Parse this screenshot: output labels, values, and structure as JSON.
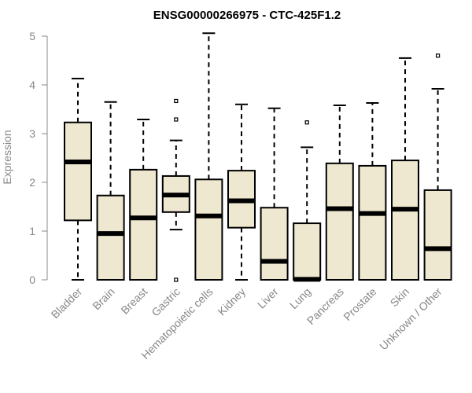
{
  "chart_data": {
    "type": "boxplot",
    "title": "ENSG00000266975 - CTC-425F1.2",
    "ylabel": "Expression",
    "ylim": [
      0,
      5.2
    ],
    "yticks": [
      "0",
      "1",
      "2",
      "3",
      "4",
      "5"
    ],
    "box_fill": "#efe8d0",
    "box_stroke": "#000000",
    "axis_color": "#888888",
    "categories": [
      "Bladder",
      "Brain",
      "Breast",
      "Gastric",
      "Hematopoietic cells",
      "Kidney",
      "Liver",
      "Lung",
      "Pancreas",
      "Prostate",
      "Skin",
      "Unknown / Other"
    ],
    "boxes": [
      {
        "whisker_low": 0.0,
        "q1": 1.22,
        "median": 2.42,
        "q3": 3.23,
        "whisker_high": 4.13,
        "outliers": []
      },
      {
        "whisker_low": 0.0,
        "q1": 0.0,
        "median": 0.95,
        "q3": 1.73,
        "whisker_high": 3.65,
        "outliers": []
      },
      {
        "whisker_low": 0.0,
        "q1": 0.0,
        "median": 1.27,
        "q3": 2.26,
        "whisker_high": 3.29,
        "outliers": []
      },
      {
        "whisker_low": 1.03,
        "q1": 1.39,
        "median": 1.74,
        "q3": 2.13,
        "whisker_high": 2.86,
        "outliers": [
          0.0,
          3.29,
          3.67
        ]
      },
      {
        "whisker_low": 0.0,
        "q1": 0.0,
        "median": 1.31,
        "q3": 2.06,
        "whisker_high": 5.06,
        "outliers": []
      },
      {
        "whisker_low": 0.0,
        "q1": 1.07,
        "median": 1.62,
        "q3": 2.24,
        "whisker_high": 3.6,
        "outliers": []
      },
      {
        "whisker_low": 0.0,
        "q1": 0.0,
        "median": 0.38,
        "q3": 1.48,
        "whisker_high": 3.52,
        "outliers": []
      },
      {
        "whisker_low": 0.0,
        "q1": 0.0,
        "median": 0.01,
        "q3": 1.16,
        "whisker_high": 2.72,
        "outliers": [
          3.23
        ]
      },
      {
        "whisker_low": 0.0,
        "q1": 0.0,
        "median": 1.46,
        "q3": 2.39,
        "whisker_high": 3.58,
        "outliers": []
      },
      {
        "whisker_low": 0.0,
        "q1": 0.0,
        "median": 1.36,
        "q3": 2.34,
        "whisker_high": 3.63,
        "outliers": []
      },
      {
        "whisker_low": 0.0,
        "q1": 0.0,
        "median": 1.45,
        "q3": 2.45,
        "whisker_high": 4.55,
        "outliers": []
      },
      {
        "whisker_low": 0.0,
        "q1": 0.0,
        "median": 0.64,
        "q3": 1.84,
        "whisker_high": 3.92,
        "outliers": [
          4.6
        ]
      }
    ]
  }
}
